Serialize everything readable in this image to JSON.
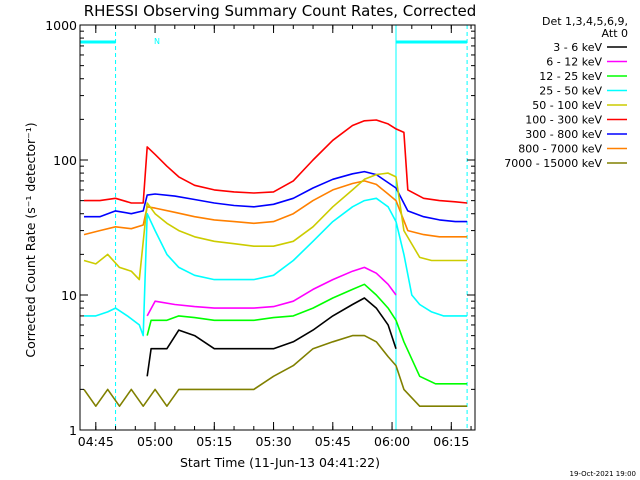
{
  "chart_data": {
    "type": "line",
    "title": "RHESSI Observing Summary Count Rates, Corrected",
    "xlabel": "Start Time (11-Jun-13 04:41:22)",
    "ylabel": "Corrected Count Rate (s⁻¹ detector⁻¹)",
    "yscale": "log",
    "ylim": [
      1,
      1000
    ],
    "yticks": [
      {
        "value": 1,
        "label": "1"
      },
      {
        "value": 10,
        "label": "10"
      },
      {
        "value": 100,
        "label": "100"
      },
      {
        "value": 1000,
        "label": "1000"
      }
    ],
    "xlim": [
      "04:41",
      "06:21"
    ],
    "xticks": [
      "04:45",
      "05:00",
      "05:15",
      "05:30",
      "05:45",
      "06:00",
      "06:15"
    ],
    "legend_header": [
      "Det 1,3,4,5,6,9,",
      "Att 0"
    ],
    "legend_position": "right",
    "annotation": "N",
    "footer": "19-Oct-2021 19:00",
    "night_intervals": [
      [
        "04:41",
        "04:50"
      ],
      [
        "06:01",
        "06:19"
      ]
    ],
    "series": [
      {
        "name": "3 - 6 keV",
        "color": "#000000",
        "points": [
          [
            "04:58",
            2.5
          ],
          [
            "04:59",
            4
          ],
          [
            "05:03",
            4
          ],
          [
            "05:06",
            5.5
          ],
          [
            "05:10",
            5
          ],
          [
            "05:15",
            4
          ],
          [
            "05:20",
            4
          ],
          [
            "05:25",
            4
          ],
          [
            "05:30",
            4
          ],
          [
            "05:35",
            4.5
          ],
          [
            "05:40",
            5.5
          ],
          [
            "05:45",
            7
          ],
          [
            "05:50",
            8.5
          ],
          [
            "05:53",
            9.5
          ],
          [
            "05:56",
            8
          ],
          [
            "05:59",
            6
          ],
          [
            "06:01",
            4
          ]
        ]
      },
      {
        "name": "6 - 12 keV",
        "color": "#ff00ff",
        "points": [
          [
            "04:58",
            7
          ],
          [
            "05:00",
            9
          ],
          [
            "05:05",
            8.5
          ],
          [
            "05:10",
            8.2
          ],
          [
            "05:15",
            8
          ],
          [
            "05:20",
            8
          ],
          [
            "05:25",
            8
          ],
          [
            "05:30",
            8.2
          ],
          [
            "05:35",
            9
          ],
          [
            "05:40",
            11
          ],
          [
            "05:45",
            13
          ],
          [
            "05:50",
            15
          ],
          [
            "05:53",
            16
          ],
          [
            "05:56",
            14.5
          ],
          [
            "05:59",
            12
          ],
          [
            "06:01",
            10
          ]
        ]
      },
      {
        "name": "12 - 25 keV",
        "color": "#00ff00",
        "points": [
          [
            "04:58",
            5
          ],
          [
            "04:59",
            6.5
          ],
          [
            "05:03",
            6.5
          ],
          [
            "05:06",
            7
          ],
          [
            "05:10",
            6.8
          ],
          [
            "05:15",
            6.5
          ],
          [
            "05:20",
            6.5
          ],
          [
            "05:25",
            6.5
          ],
          [
            "05:30",
            6.8
          ],
          [
            "05:35",
            7
          ],
          [
            "05:40",
            8
          ],
          [
            "05:45",
            9.5
          ],
          [
            "05:50",
            11
          ],
          [
            "05:53",
            12
          ],
          [
            "05:56",
            10
          ],
          [
            "05:59",
            8
          ],
          [
            "06:01",
            6.5
          ],
          [
            "06:03",
            4.5
          ],
          [
            "06:07",
            2.5
          ],
          [
            "06:11",
            2.2
          ],
          [
            "06:15",
            2.2
          ],
          [
            "06:19",
            2.2
          ]
        ]
      },
      {
        "name": "25 - 50 keV",
        "color": "#00ffff",
        "points": [
          [
            "04:42",
            7
          ],
          [
            "04:45",
            7
          ],
          [
            "04:48",
            7.5
          ],
          [
            "04:50",
            8
          ],
          [
            "04:53",
            7
          ],
          [
            "04:56",
            6
          ],
          [
            "04:57",
            5
          ],
          [
            "04:58",
            40
          ],
          [
            "05:00",
            30
          ],
          [
            "05:03",
            20
          ],
          [
            "05:06",
            16
          ],
          [
            "05:10",
            14
          ],
          [
            "05:15",
            13
          ],
          [
            "05:20",
            13
          ],
          [
            "05:25",
            13
          ],
          [
            "05:30",
            14
          ],
          [
            "05:35",
            18
          ],
          [
            "05:40",
            25
          ],
          [
            "05:45",
            35
          ],
          [
            "05:50",
            45
          ],
          [
            "05:53",
            50
          ],
          [
            "05:56",
            52
          ],
          [
            "05:59",
            45
          ],
          [
            "06:01",
            35
          ],
          [
            "06:03",
            20
          ],
          [
            "06:05",
            10
          ],
          [
            "06:07",
            8.5
          ],
          [
            "06:10",
            7.5
          ],
          [
            "06:13",
            7
          ],
          [
            "06:16",
            7
          ],
          [
            "06:19",
            7
          ]
        ]
      },
      {
        "name": "50 - 100 keV",
        "color": "#cccc00",
        "points": [
          [
            "04:42",
            18
          ],
          [
            "04:45",
            17
          ],
          [
            "04:48",
            20
          ],
          [
            "04:51",
            16
          ],
          [
            "04:54",
            15
          ],
          [
            "04:56",
            13
          ],
          [
            "04:58",
            48
          ],
          [
            "05:00",
            40
          ],
          [
            "05:03",
            34
          ],
          [
            "05:06",
            30
          ],
          [
            "05:10",
            27
          ],
          [
            "05:15",
            25
          ],
          [
            "05:20",
            24
          ],
          [
            "05:25",
            23
          ],
          [
            "05:30",
            23
          ],
          [
            "05:35",
            25
          ],
          [
            "05:40",
            32
          ],
          [
            "05:45",
            45
          ],
          [
            "05:50",
            60
          ],
          [
            "05:53",
            72
          ],
          [
            "05:56",
            78
          ],
          [
            "05:59",
            80
          ],
          [
            "06:01",
            75
          ],
          [
            "06:03",
            30
          ],
          [
            "06:07",
            19
          ],
          [
            "06:10",
            18
          ],
          [
            "06:13",
            18
          ],
          [
            "06:16",
            18
          ],
          [
            "06:19",
            18
          ]
        ]
      },
      {
        "name": "100 - 300 keV",
        "color": "#ff0000",
        "points": [
          [
            "04:42",
            50
          ],
          [
            "04:46",
            50
          ],
          [
            "04:50",
            52
          ],
          [
            "04:54",
            48
          ],
          [
            "04:57",
            48
          ],
          [
            "04:58",
            125
          ],
          [
            "05:00",
            110
          ],
          [
            "05:03",
            90
          ],
          [
            "05:06",
            75
          ],
          [
            "05:10",
            65
          ],
          [
            "05:15",
            60
          ],
          [
            "05:20",
            58
          ],
          [
            "05:25",
            57
          ],
          [
            "05:30",
            58
          ],
          [
            "05:35",
            70
          ],
          [
            "05:40",
            100
          ],
          [
            "05:45",
            140
          ],
          [
            "05:50",
            180
          ],
          [
            "05:53",
            195
          ],
          [
            "05:56",
            198
          ],
          [
            "05:59",
            185
          ],
          [
            "06:01",
            170
          ],
          [
            "06:03",
            160
          ],
          [
            "06:04",
            60
          ],
          [
            "06:08",
            52
          ],
          [
            "06:12",
            50
          ],
          [
            "06:16",
            49
          ],
          [
            "06:19",
            48
          ]
        ]
      },
      {
        "name": "300 - 800 keV",
        "color": "#0000ff",
        "points": [
          [
            "04:42",
            38
          ],
          [
            "04:46",
            38
          ],
          [
            "04:50",
            42
          ],
          [
            "04:54",
            40
          ],
          [
            "04:57",
            42
          ],
          [
            "04:58",
            55
          ],
          [
            "05:00",
            56
          ],
          [
            "05:05",
            54
          ],
          [
            "05:10",
            51
          ],
          [
            "05:15",
            48
          ],
          [
            "05:20",
            46
          ],
          [
            "05:25",
            45
          ],
          [
            "05:30",
            47
          ],
          [
            "05:35",
            52
          ],
          [
            "05:40",
            62
          ],
          [
            "05:45",
            72
          ],
          [
            "05:50",
            79
          ],
          [
            "05:53",
            82
          ],
          [
            "05:56",
            78
          ],
          [
            "05:59",
            68
          ],
          [
            "06:01",
            62
          ],
          [
            "06:04",
            42
          ],
          [
            "06:08",
            38
          ],
          [
            "06:12",
            36
          ],
          [
            "06:16",
            35
          ],
          [
            "06:19",
            35
          ]
        ]
      },
      {
        "name": "800 - 7000 keV",
        "color": "#ff8000",
        "points": [
          [
            "04:42",
            28
          ],
          [
            "04:46",
            30
          ],
          [
            "04:50",
            32
          ],
          [
            "04:54",
            31
          ],
          [
            "04:57",
            33
          ],
          [
            "04:58",
            45
          ],
          [
            "05:00",
            44
          ],
          [
            "05:05",
            41
          ],
          [
            "05:10",
            38
          ],
          [
            "05:15",
            36
          ],
          [
            "05:20",
            35
          ],
          [
            "05:25",
            34
          ],
          [
            "05:30",
            35
          ],
          [
            "05:35",
            40
          ],
          [
            "05:40",
            50
          ],
          [
            "05:45",
            60
          ],
          [
            "05:50",
            67
          ],
          [
            "05:53",
            70
          ],
          [
            "05:56",
            66
          ],
          [
            "05:59",
            56
          ],
          [
            "06:01",
            50
          ],
          [
            "06:04",
            30
          ],
          [
            "06:08",
            28
          ],
          [
            "06:12",
            27
          ],
          [
            "06:16",
            27
          ],
          [
            "06:19",
            27
          ]
        ]
      },
      {
        "name": "7000 - 15000 keV",
        "color": "#808000",
        "points": [
          [
            "04:42",
            2
          ],
          [
            "04:45",
            1.5
          ],
          [
            "04:48",
            2
          ],
          [
            "04:51",
            1.5
          ],
          [
            "04:54",
            2
          ],
          [
            "04:57",
            1.5
          ],
          [
            "05:00",
            2
          ],
          [
            "05:03",
            1.5
          ],
          [
            "05:06",
            2
          ],
          [
            "05:10",
            2
          ],
          [
            "05:15",
            2
          ],
          [
            "05:20",
            2
          ],
          [
            "05:25",
            2
          ],
          [
            "05:30",
            2.5
          ],
          [
            "05:35",
            3
          ],
          [
            "05:40",
            4
          ],
          [
            "05:45",
            4.5
          ],
          [
            "05:50",
            5
          ],
          [
            "05:53",
            5
          ],
          [
            "05:56",
            4.5
          ],
          [
            "05:59",
            3.5
          ],
          [
            "06:01",
            3
          ],
          [
            "06:03",
            2
          ],
          [
            "06:07",
            1.5
          ],
          [
            "06:11",
            1.5
          ],
          [
            "06:15",
            1.5
          ],
          [
            "06:19",
            1.5
          ]
        ]
      }
    ]
  }
}
